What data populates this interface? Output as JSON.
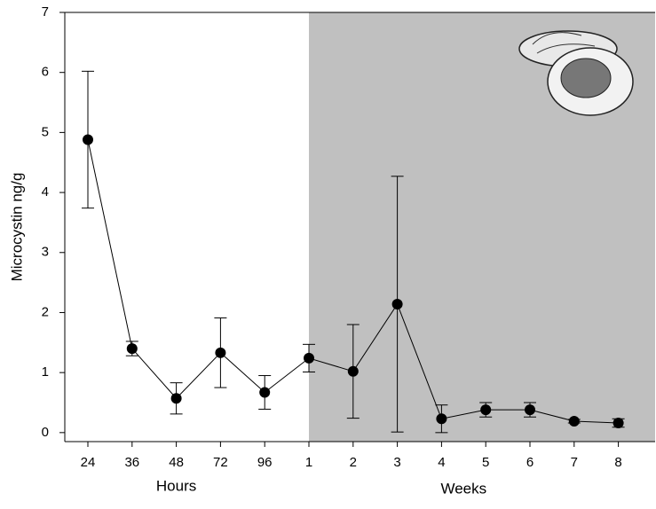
{
  "chart_data": {
    "type": "line",
    "y_label": "Microcystin ng/g",
    "groups": [
      {
        "label": "Hours",
        "shaded": false,
        "categories": [
          "24",
          "36",
          "48",
          "72",
          "96"
        ]
      },
      {
        "label": "Weeks",
        "shaded": true,
        "categories": [
          "1",
          "2",
          "3",
          "4",
          "5",
          "6",
          "7",
          "8"
        ]
      }
    ],
    "values": [
      4.88,
      1.4,
      0.57,
      1.33,
      0.67,
      1.24,
      1.02,
      2.14,
      0.23,
      0.38,
      0.38,
      0.19,
      0.16
    ],
    "errors": [
      1.14,
      0.12,
      0.26,
      0.58,
      0.28,
      0.23,
      0.78,
      2.13,
      0.23,
      0.12,
      0.12,
      0.03,
      0.07
    ],
    "color": "#000000",
    "shade_color": "#c0c0c0",
    "ylim": [
      -0.15,
      7
    ],
    "yticks": [
      0,
      1,
      2,
      3,
      4,
      5,
      6,
      7
    ]
  }
}
